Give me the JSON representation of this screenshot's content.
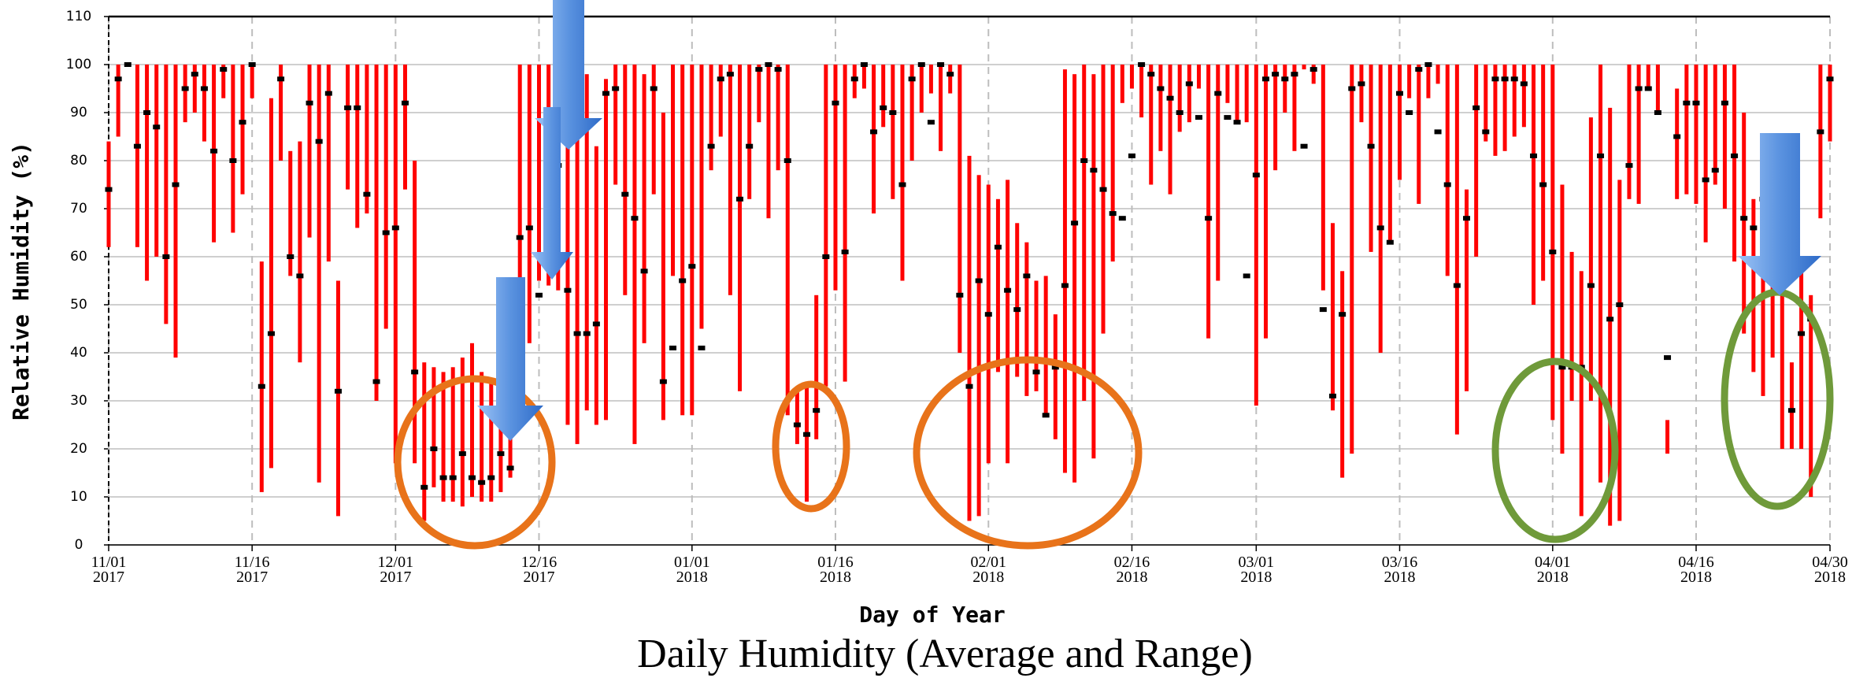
{
  "chart_data": {
    "type": "range",
    "title": "Daily Humidity (Average and Range)",
    "x_label": "Day of Year",
    "y_label": "Relative Humidity (%)",
    "range_color": "#ff0000",
    "average_color": "#000000",
    "grid": true,
    "ylim": [
      0,
      110
    ],
    "yticks": [
      0,
      10,
      20,
      30,
      40,
      50,
      60,
      70,
      80,
      90,
      100,
      110
    ],
    "xlim": [
      "2017-11-01",
      "2018-04-30"
    ],
    "xticks": [
      {
        "value": "2017-11-01",
        "label": "11/01\n2017"
      },
      {
        "value": "2017-11-16",
        "label": "11/16\n2017"
      },
      {
        "value": "2017-12-01",
        "label": "12/01\n2017"
      },
      {
        "value": "2017-12-16",
        "label": "12/16\n2017"
      },
      {
        "value": "2018-01-01",
        "label": "01/01\n2018"
      },
      {
        "value": "2018-01-16",
        "label": "01/16\n2018"
      },
      {
        "value": "2018-02-01",
        "label": "02/01\n2018"
      },
      {
        "value": "2018-02-16",
        "label": "02/16\n2018"
      },
      {
        "value": "2018-03-01",
        "label": "03/01\n2018"
      },
      {
        "value": "2018-03-16",
        "label": "03/16\n2018"
      },
      {
        "value": "2018-04-01",
        "label": "04/01\n2018"
      },
      {
        "value": "2018-04-16",
        "label": "04/16\n2018"
      },
      {
        "value": "2018-04-30",
        "label": "04/30\n2018"
      }
    ],
    "x": [
      "2017-11-01",
      "2017-11-02",
      "2017-11-03",
      "2017-11-04",
      "2017-11-05",
      "2017-11-06",
      "2017-11-07",
      "2017-11-08",
      "2017-11-09",
      "2017-11-10",
      "2017-11-11",
      "2017-11-12",
      "2017-11-13",
      "2017-11-14",
      "2017-11-15",
      "2017-11-16",
      "2017-11-17",
      "2017-11-18",
      "2017-11-19",
      "2017-11-20",
      "2017-11-21",
      "2017-11-22",
      "2017-11-23",
      "2017-11-24",
      "2017-11-25",
      "2017-11-26",
      "2017-11-27",
      "2017-11-28",
      "2017-11-29",
      "2017-11-30",
      "2017-12-01",
      "2017-12-02",
      "2017-12-03",
      "2017-12-04",
      "2017-12-05",
      "2017-12-06",
      "2017-12-07",
      "2017-12-08",
      "2017-12-09",
      "2017-12-10",
      "2017-12-11",
      "2017-12-12",
      "2017-12-13",
      "2017-12-14",
      "2017-12-15",
      "2017-12-16",
      "2017-12-17",
      "2017-12-18",
      "2017-12-19",
      "2017-12-20",
      "2017-12-21",
      "2017-12-22",
      "2017-12-23",
      "2017-12-24",
      "2017-12-25",
      "2017-12-26",
      "2017-12-27",
      "2017-12-28",
      "2017-12-29",
      "2017-12-30",
      "2017-12-31",
      "2018-01-01",
      "2018-01-02",
      "2018-01-03",
      "2018-01-04",
      "2018-01-05",
      "2018-01-06",
      "2018-01-07",
      "2018-01-08",
      "2018-01-09",
      "2018-01-10",
      "2018-01-11",
      "2018-01-12",
      "2018-01-13",
      "2018-01-14",
      "2018-01-15",
      "2018-01-16",
      "2018-01-17",
      "2018-01-18",
      "2018-01-19",
      "2018-01-20",
      "2018-01-21",
      "2018-01-22",
      "2018-01-23",
      "2018-01-24",
      "2018-01-25",
      "2018-01-26",
      "2018-01-27",
      "2018-01-28",
      "2018-01-29",
      "2018-01-30",
      "2018-01-31",
      "2018-02-01",
      "2018-02-02",
      "2018-02-03",
      "2018-02-04",
      "2018-02-05",
      "2018-02-06",
      "2018-02-07",
      "2018-02-08",
      "2018-02-09",
      "2018-02-10",
      "2018-02-11",
      "2018-02-12",
      "2018-02-13",
      "2018-02-14",
      "2018-02-15",
      "2018-02-16",
      "2018-02-17",
      "2018-02-18",
      "2018-02-19",
      "2018-02-20",
      "2018-02-21",
      "2018-02-22",
      "2018-02-23",
      "2018-02-24",
      "2018-02-25",
      "2018-02-26",
      "2018-02-27",
      "2018-02-28",
      "2018-03-01",
      "2018-03-02",
      "2018-03-03",
      "2018-03-04",
      "2018-03-05",
      "2018-03-06",
      "2018-03-07",
      "2018-03-08",
      "2018-03-09",
      "2018-03-10",
      "2018-03-11",
      "2018-03-12",
      "2018-03-13",
      "2018-03-14",
      "2018-03-15",
      "2018-03-16",
      "2018-03-17",
      "2018-03-18",
      "2018-03-19",
      "2018-03-20",
      "2018-03-21",
      "2018-03-22",
      "2018-03-23",
      "2018-03-24",
      "2018-03-25",
      "2018-03-26",
      "2018-03-27",
      "2018-03-28",
      "2018-03-29",
      "2018-03-30",
      "2018-03-31",
      "2018-04-01",
      "2018-04-02",
      "2018-04-03",
      "2018-04-04",
      "2018-04-05",
      "2018-04-06",
      "2018-04-07",
      "2018-04-08",
      "2018-04-09",
      "2018-04-10",
      "2018-04-11",
      "2018-04-12",
      "2018-04-13",
      "2018-04-14",
      "2018-04-15",
      "2018-04-16",
      "2018-04-17",
      "2018-04-18",
      "2018-04-19",
      "2018-04-20",
      "2018-04-21",
      "2018-04-22",
      "2018-04-23",
      "2018-04-24",
      "2018-04-25",
      "2018-04-26",
      "2018-04-27",
      "2018-04-28",
      "2018-04-29",
      "2018-04-30"
    ],
    "high": [
      84,
      100,
      100,
      100,
      100,
      100,
      100,
      100,
      100,
      100,
      100,
      100,
      100,
      100,
      100,
      100,
      59,
      93,
      100,
      82,
      84,
      100,
      100,
      100,
      55,
      100,
      100,
      100,
      100,
      100,
      100,
      100,
      80,
      38,
      37,
      36,
      37,
      39,
      42,
      36,
      34,
      36,
      35,
      100,
      100,
      100,
      100,
      100,
      100,
      100,
      98,
      83,
      97,
      100,
      100,
      100,
      98,
      100,
      90,
      100,
      100,
      100,
      100,
      100,
      100,
      100,
      100,
      100,
      100,
      100,
      100,
      100,
      32,
      34,
      52,
      100,
      100,
      100,
      100,
      100,
      100,
      100,
      100,
      100,
      100,
      100,
      100,
      100,
      100,
      100,
      81,
      77,
      75,
      72,
      76,
      67,
      63,
      55,
      56,
      48,
      99,
      98,
      100,
      98,
      100,
      100,
      100,
      100,
      100,
      100,
      100,
      100,
      100,
      100,
      100,
      100,
      100,
      100,
      100,
      100,
      100,
      100,
      100,
      100,
      100,
      100,
      100,
      100,
      67,
      57,
      100,
      100,
      100,
      100,
      100,
      100,
      100,
      100,
      100,
      100,
      100,
      100,
      74,
      100,
      100,
      100,
      100,
      100,
      100,
      100,
      100,
      100,
      75,
      61,
      57,
      89,
      100,
      91,
      76,
      100,
      100,
      100,
      100,
      26,
      95,
      100,
      100,
      100,
      100,
      100,
      100,
      90,
      72,
      66,
      73,
      57,
      38,
      59,
      52,
      100,
      100
    ],
    "low": [
      62,
      85,
      100,
      62,
      55,
      60,
      46,
      39,
      88,
      90,
      84,
      63,
      93,
      65,
      73,
      93,
      11,
      16,
      80,
      56,
      38,
      64,
      13,
      59,
      6,
      74,
      66,
      69,
      30,
      45,
      17,
      74,
      17,
      5,
      12,
      9,
      9,
      8,
      10,
      9,
      9,
      11,
      14,
      48,
      42,
      55,
      54,
      53,
      25,
      21,
      28,
      25,
      26,
      75,
      52,
      21,
      42,
      73,
      26,
      56,
      27,
      27,
      45,
      78,
      85,
      52,
      32,
      72,
      88,
      68,
      78,
      27,
      21,
      9,
      22,
      33,
      53,
      34,
      93,
      95,
      69,
      87,
      72,
      55,
      80,
      90,
      94,
      82,
      94,
      40,
      5,
      6,
      17,
      36,
      17,
      35,
      31,
      32,
      27,
      22,
      15,
      13,
      30,
      18,
      44,
      59,
      92,
      95,
      89,
      75,
      82,
      73,
      86,
      88,
      95,
      43,
      55,
      92,
      88,
      88,
      29,
      43,
      78,
      90,
      82,
      99,
      96,
      53,
      28,
      14,
      19,
      88,
      61,
      40,
      63,
      76,
      93,
      71,
      93,
      96,
      56,
      23,
      32,
      60,
      84,
      81,
      82,
      85,
      87,
      50,
      55,
      26,
      19,
      30,
      6,
      30,
      13,
      4,
      5,
      72,
      71,
      95,
      90,
      19,
      72,
      73,
      71,
      63,
      75,
      70,
      59,
      44,
      36,
      31,
      39,
      20,
      20,
      20,
      10,
      68,
      84
    ],
    "average": [
      74,
      97,
      100,
      83,
      90,
      87,
      60,
      75,
      95,
      98,
      95,
      82,
      99,
      80,
      88,
      100,
      33,
      44,
      97,
      60,
      56,
      92,
      84,
      94,
      32,
      91,
      91,
      73,
      34,
      65,
      66,
      92,
      36,
      12,
      20,
      14,
      14,
      19,
      14,
      13,
      14,
      19,
      16,
      64,
      66,
      52,
      63,
      79,
      53,
      44,
      44,
      46,
      94,
      95,
      73,
      68,
      57,
      95,
      34,
      41,
      55,
      58,
      41,
      83,
      97,
      98,
      72,
      83,
      99,
      100,
      99,
      80,
      25,
      23,
      28,
      60,
      92,
      61,
      97,
      100,
      86,
      91,
      90,
      75,
      97,
      100,
      88,
      100,
      98,
      52,
      33,
      55,
      48,
      62,
      53,
      49,
      56,
      36,
      27,
      37,
      54,
      67,
      80,
      78,
      74,
      69,
      68,
      81,
      100,
      98,
      95,
      93,
      90,
      96,
      89,
      68,
      94,
      89,
      88,
      56,
      77,
      97,
      98,
      97,
      98,
      83,
      99,
      49,
      31,
      48,
      95,
      96,
      83,
      66,
      63,
      94,
      90,
      99,
      100,
      86,
      75,
      54,
      68,
      91,
      86,
      97,
      97,
      97,
      96,
      81,
      75,
      61,
      37,
      37,
      37,
      54,
      81,
      47,
      50,
      79,
      95,
      95,
      90,
      39,
      85,
      92,
      92,
      76,
      78,
      92,
      81,
      68,
      66,
      72,
      68,
      56,
      28,
      44,
      47,
      86,
      97
    ]
  }
}
